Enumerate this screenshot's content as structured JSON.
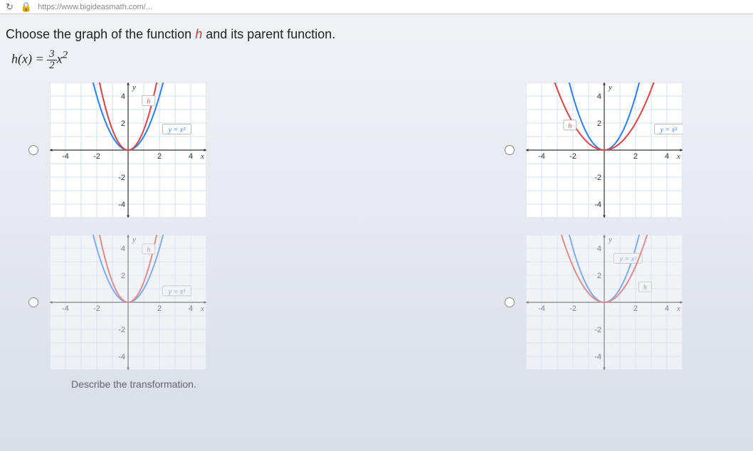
{
  "urlbar": {
    "refresh_icon": "↻",
    "lock_icon": "🔒",
    "url": "https://www.bigideasmath.com/..."
  },
  "question": {
    "prefix": "Choose the graph of the function ",
    "fn_name": "h",
    "suffix": " and its parent function."
  },
  "equation": {
    "lhs": "h(x) =",
    "num": "3",
    "den": "2",
    "rhs": "x",
    "exp": "2"
  },
  "chart_common": {
    "xlim": [
      -5,
      5
    ],
    "ylim": [
      -5,
      5
    ],
    "xticks": [
      -4,
      -2,
      2,
      4
    ],
    "yticks": [
      -4,
      -2,
      2,
      4
    ],
    "xlabel": "x",
    "ylabel": "y",
    "grid_color": "#d6e2f2",
    "axis_color": "#333333",
    "background_color": "#ffffff",
    "tick_fontsize": 11
  },
  "options": [
    {
      "id": "A",
      "faded": false,
      "curves": [
        {
          "name": "parent",
          "color": "#2a7fff",
          "type": "parabola",
          "a": 1.0,
          "label": "y = x²",
          "label_pos": [
            2.2,
            1.5
          ]
        },
        {
          "name": "h",
          "color": "#d44",
          "type": "parabola",
          "a": 1.5,
          "label": "h",
          "label_pos": [
            0.9,
            3.6
          ]
        }
      ]
    },
    {
      "id": "B",
      "faded": false,
      "curves": [
        {
          "name": "parent",
          "color": "#2a7fff",
          "type": "parabola",
          "a": 1.0,
          "label": "y = x²",
          "label_pos": [
            3.2,
            1.5
          ]
        },
        {
          "name": "h",
          "color": "#d44",
          "type": "parabola",
          "a": 0.5,
          "label": "h",
          "label_pos": [
            -2.6,
            1.8
          ]
        }
      ]
    },
    {
      "id": "C",
      "faded": true,
      "curves": [
        {
          "name": "parent",
          "color": "#2a7fff",
          "type": "parabola",
          "a": 1.0,
          "label": "y = x²",
          "label_pos": [
            2.2,
            0.8
          ]
        },
        {
          "name": "h",
          "color": "#d44",
          "type": "parabola",
          "a": 1.5,
          "label": "h",
          "label_pos": [
            0.9,
            3.9
          ]
        }
      ]
    },
    {
      "id": "D",
      "faded": true,
      "curves": [
        {
          "name": "parent",
          "color": "#2a7fff",
          "type": "parabola",
          "a": 1.0,
          "label": "y = x²",
          "label_pos": [
            0.6,
            3.2
          ]
        },
        {
          "name": "h",
          "color": "#d44",
          "type": "parabola",
          "a": 0.667,
          "label": "h",
          "label_pos": [
            2.2,
            1.1
          ]
        }
      ]
    }
  ],
  "describe": {
    "text": "Describe the transformation."
  }
}
